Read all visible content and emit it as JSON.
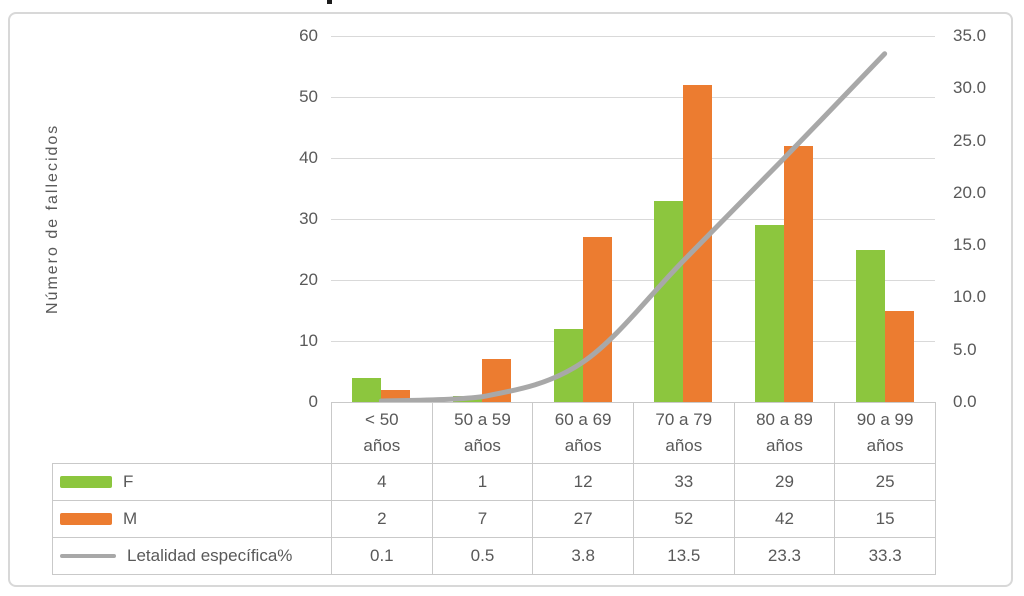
{
  "chart_data": {
    "type": "combo-bar-line",
    "categories": [
      "< 50 años",
      "50 a 59 años",
      "60 a 69 años",
      "70 a 79 años",
      "80 a 89 años",
      "90 a 99 años"
    ],
    "series": [
      {
        "name": "F",
        "type": "bar",
        "color": "#8CC63E",
        "values": [
          4,
          1,
          12,
          33,
          29,
          25
        ]
      },
      {
        "name": "M",
        "type": "bar",
        "color": "#EC7C30",
        "values": [
          2,
          7,
          27,
          52,
          42,
          15
        ]
      },
      {
        "name": "Letalidad específica%",
        "type": "line",
        "color": "#A8A8A8",
        "axis": "right",
        "values": [
          0.1,
          0.5,
          3.8,
          13.5,
          23.3,
          33.3
        ]
      }
    ],
    "ylabel": "Número de fallecidos",
    "left_axis": {
      "min": 0,
      "max": 60,
      "ticks": [
        "60",
        "50",
        "40",
        "30",
        "20",
        "10",
        "0"
      ]
    },
    "right_axis": {
      "min": 0,
      "max": 35,
      "ticks": [
        "35.0",
        "30.0",
        "25.0",
        "20.0",
        "15.0",
        "10.0",
        "5.0",
        "0.0"
      ]
    },
    "grid": true,
    "legend_position": "data-table-left-column",
    "data_table_shown": true
  },
  "colors": {
    "bar_f": "#8CC63E",
    "bar_m": "#EC7C30",
    "line": "#A8A8A8",
    "text": "#595959",
    "gridline": "#D9D9D9",
    "table_border": "#C9C9C9",
    "frame_border": "#D8D8D8",
    "background": "#FFFFFF"
  }
}
